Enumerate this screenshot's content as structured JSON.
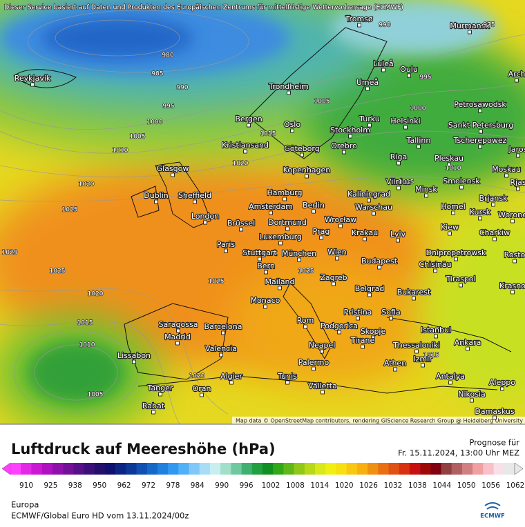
{
  "header": {
    "notice": "Dieser Service basiert auf Daten und Produkten des Europäischen Zentrums für mittelfristige Wettervorhersage (ECMWF)",
    "attribution": "Map data © OpenStreetMap contributors, rendering GIScience Research Group @ Heidelberg University"
  },
  "cities": [
    "Reykjavik",
    "Tromsø",
    "Murmansk",
    "Luleå",
    "Oulu",
    "Arch",
    "Trondheim",
    "Umeå",
    "Petrosawodsk",
    "Bergen",
    "Turku",
    "Helsinki",
    "Sankt Petersburg",
    "Oslo",
    "Stockholm",
    "Tallinn",
    "Tscherepowez",
    "Kristiansand",
    "Göteborg",
    "Orebro",
    "Jaros",
    "Riga",
    "Pleskau",
    "Glasgow",
    "Kopenhagen",
    "Moskau",
    "Vilnius",
    "Smolensk",
    "Rjas",
    "Dublin",
    "Sheffield",
    "Hamburg",
    "Kaliningrad",
    "Minsk",
    "Brjansk",
    "Berlin",
    "Amsterdam",
    "Warschau",
    "Homel",
    "Kursk",
    "Worone",
    "London",
    "Brüssel",
    "Dortmund",
    "Wrocław",
    "Kiew",
    "Krakau",
    "Lviv",
    "Charkiw",
    "Paris",
    "Luxemburg",
    "Prag",
    "Stuttgart",
    "München",
    "Wien",
    "Dnipropetrowsk",
    "Rosto",
    "Bern",
    "Budapest",
    "Chisinău",
    "Mailand",
    "Zagreb",
    "Tiraspol",
    "Krasno",
    "Belgrad",
    "Bukarest",
    "Monaco",
    "Sofia",
    "Pristina",
    "Rom",
    "Podgorica",
    "Saragossa",
    "Barcelona",
    "Istanbul",
    "Madrid",
    "Skopje",
    "Tirane",
    "Ankara",
    "Thessaloniki",
    "Neapel",
    "Valencia",
    "Lissabon",
    "Izmir",
    "Athen",
    "Palermo",
    "Algier",
    "Tunis",
    "Antalya",
    "Aleppo",
    "Valletta",
    "Tanger",
    "Oran",
    "Nikosia",
    "Rabat",
    "Damaskus"
  ],
  "isobar_labels": [
    980,
    985,
    990,
    995,
    1000,
    1005,
    1010,
    1020,
    1025,
    1029,
    1025,
    1020,
    1015,
    1010,
    1005,
    1025,
    1020,
    1015,
    1005,
    1000,
    995,
    990,
    975,
    1010,
    1015,
    1025,
    1020,
    1015
  ],
  "footer": {
    "title": "Luftdruck auf Meereshöhe (hPa)",
    "forecast_label": "Prognose für",
    "forecast_time": "Fr. 15.11.2024, 13:00 Uhr MEZ",
    "region": "Europa",
    "model": "ECMWF/Global Euro HD vom  13.11.2024/00z",
    "logo": "ECMWF"
  },
  "colorbar": {
    "ticks": [
      910,
      925,
      938,
      950,
      962,
      972,
      978,
      984,
      990,
      996,
      1002,
      1008,
      1014,
      1020,
      1026,
      1032,
      1038,
      1044,
      1050,
      1056,
      1062
    ],
    "colors": [
      "#ff40ff",
      "#e428e8",
      "#cc18d4",
      "#b010c0",
      "#9010ac",
      "#741098",
      "#581088",
      "#3c1078",
      "#24106c",
      "#101070",
      "#0c2484",
      "#0c3898",
      "#1050b0",
      "#1668c8",
      "#2080e0",
      "#3098f0",
      "#50b0f8",
      "#80c8f8",
      "#a8ddf8",
      "#c8eef0",
      "#a0e0c8",
      "#70c8a0",
      "#40b070",
      "#20a040",
      "#109020",
      "#30a818",
      "#60b818",
      "#90c818",
      "#b8d818",
      "#d8e818",
      "#f0f010",
      "#f8e010",
      "#f8c810",
      "#f8b010",
      "#f09010",
      "#e87010",
      "#e05010",
      "#d83010",
      "#c81010",
      "#a00808",
      "#800010",
      "#904040",
      "#b06060",
      "#d08080",
      "#f0a0a0",
      "#f8c0c8",
      "#f8e0e8",
      "#e8e8e8"
    ]
  }
}
